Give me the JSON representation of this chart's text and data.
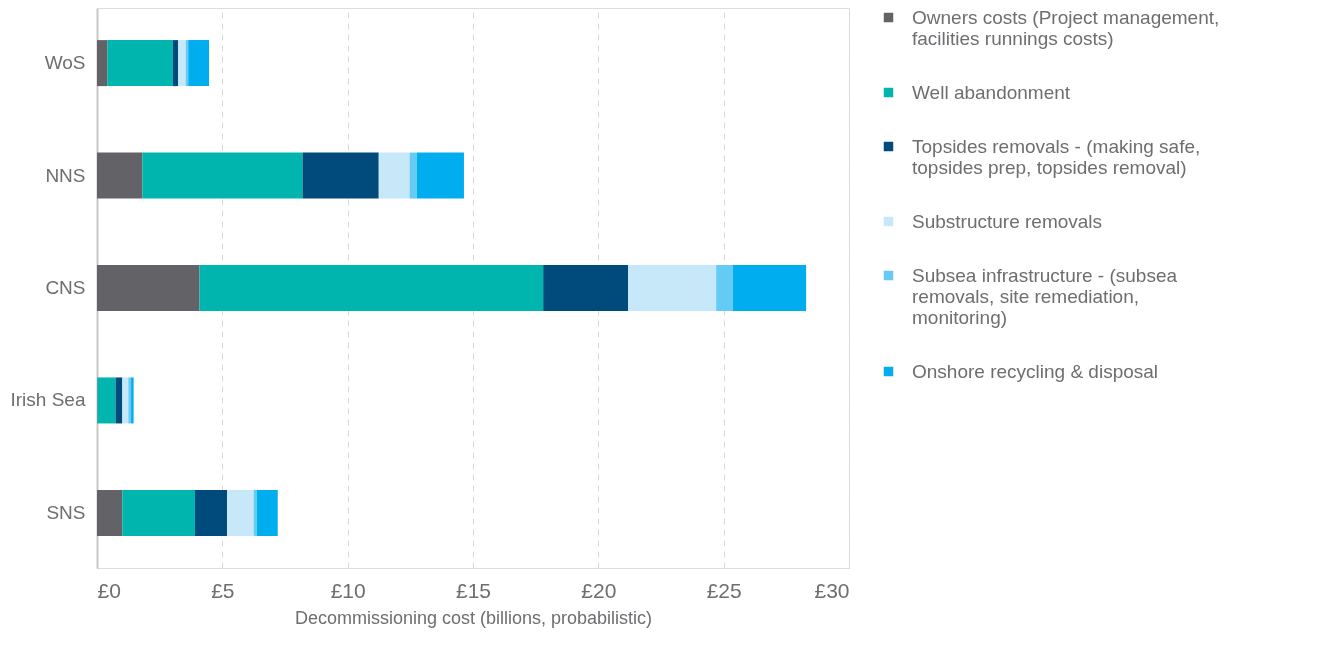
{
  "chart_data": {
    "type": "bar",
    "orientation": "horizontal",
    "stacked": true,
    "xlabel": "Decommissioning cost (billions, probabilistic)",
    "categories": [
      "WoS",
      "NNS",
      "CNS",
      "Irish Sea",
      "SNS"
    ],
    "series": [
      {
        "name": "Owners costs (Project management, facilities runnings costs)",
        "color": "#636267",
        "values": [
          0.41,
          1.81,
          4.09,
          0.02,
          1.01
        ]
      },
      {
        "name": "Well abandonment",
        "color": "#00b5ad",
        "values": [
          2.62,
          6.39,
          13.71,
          0.72,
          2.9
        ]
      },
      {
        "name": "Topsides removals - (making safe, topsides prep, topsides removal)",
        "color": "#004a7c",
        "values": [
          0.21,
          3.04,
          3.39,
          0.27,
          1.28
        ]
      },
      {
        "name": "Substructure removals",
        "color": "#c6e8f8",
        "values": [
          0.3,
          1.23,
          3.51,
          0.24,
          1.06
        ]
      },
      {
        "name": "Subsea infrastructure - (subsea removals, site remediation, monitoring)",
        "color": "#66cbf4",
        "values": [
          0.1,
          0.29,
          0.67,
          0.11,
          0.12
        ]
      },
      {
        "name": "Onshore recycling & disposal",
        "color": "#00aeef",
        "values": [
          0.83,
          1.88,
          2.92,
          0.1,
          0.84
        ]
      }
    ],
    "xlim": [
      0,
      30
    ],
    "xticks": [
      {
        "value": 0,
        "label": "£0"
      },
      {
        "value": 5,
        "label": "£5"
      },
      {
        "value": 10,
        "label": "£10"
      },
      {
        "value": 15,
        "label": "£15"
      },
      {
        "value": 20,
        "label": "£20"
      },
      {
        "value": 25,
        "label": "£25"
      },
      {
        "value": 30,
        "label": "£30"
      }
    ],
    "grid": "x",
    "legend": "right"
  }
}
